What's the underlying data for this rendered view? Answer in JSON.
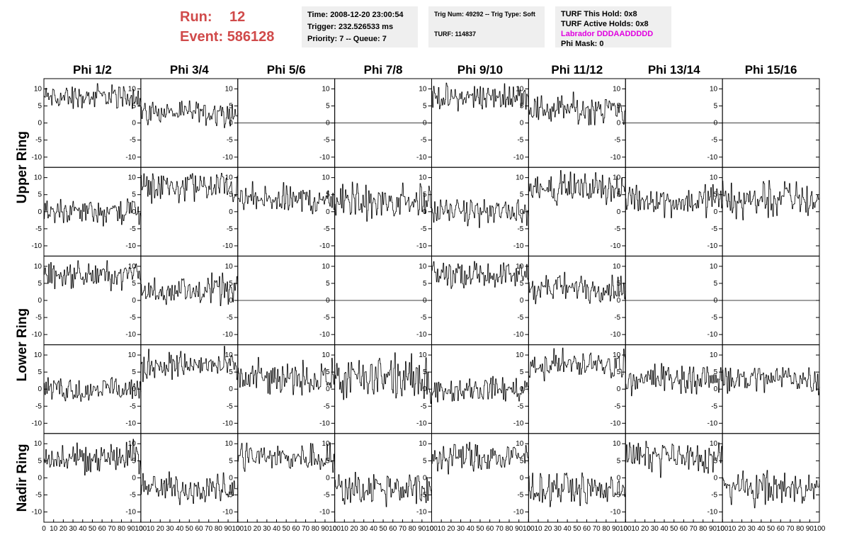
{
  "header": {
    "run_label": "Run:",
    "run_value": "12",
    "event_label": "Event:",
    "event_value": "586128",
    "time": "Time: 2008-12-20 23:00:54",
    "trigger": "Trigger: 232.526533 ms",
    "priority": "Priority: 7 -- Queue: 7",
    "trig_num": "Trig Num: 49292 -- Trig Type: Soft",
    "turf": "TURF: 114837",
    "turf_this_hold": "TURF This Hold: 0x8",
    "turf_active_holds": "TURF Active Holds: 0x8",
    "labrador": "Labrador DDDAADDDDD",
    "phi_mask": "Phi Mask: 0"
  },
  "colors": {
    "run": "#d04a4a",
    "labrador": "#e000e0",
    "panel_bg": "#efefef",
    "trace": "#000000"
  },
  "chart_data": {
    "type": "line",
    "columns": [
      "Phi 1/2",
      "Phi 3/4",
      "Phi 5/6",
      "Phi 7/8",
      "Phi 9/10",
      "Phi 11/12",
      "Phi 13/14",
      "Phi 15/16"
    ],
    "rings": [
      "Upper Ring",
      "Lower Ring",
      "Nadir Ring"
    ],
    "row_ring_index": [
      0,
      0,
      1,
      1,
      2
    ],
    "xlim": [
      0,
      100
    ],
    "ylim": [
      -13,
      13
    ],
    "x_ticks": [
      "0",
      "10",
      "20",
      "30",
      "40",
      "50",
      "60",
      "70",
      "80",
      "90",
      "100"
    ],
    "y_ticks": [
      "10",
      "5",
      "0",
      "-5",
      "-10"
    ],
    "samples_per_trace": 100,
    "panel_mean_levels": [
      [
        7.5,
        3,
        0,
        0,
        7.5,
        4,
        0,
        0
      ],
      [
        0,
        7,
        3.5,
        3,
        0,
        7,
        3.5,
        3.5
      ],
      [
        7.5,
        3,
        0,
        0,
        7.5,
        3.5,
        0,
        0
      ],
      [
        0,
        7,
        3,
        3,
        0,
        7,
        3,
        3
      ],
      [
        6,
        -3,
        6,
        -3,
        6,
        -3,
        6,
        -3
      ]
    ],
    "panel_noise_amplitude": [
      [
        2.5,
        2.5,
        0,
        0,
        2.5,
        3,
        0,
        0
      ],
      [
        2.5,
        3,
        3,
        4,
        2.5,
        3,
        3,
        4
      ],
      [
        2.5,
        3,
        0,
        0,
        2.5,
        3,
        0,
        0
      ],
      [
        2.5,
        3,
        3.5,
        4.5,
        2.5,
        3,
        3,
        3
      ],
      [
        3,
        3,
        3,
        3.5,
        3,
        3,
        3,
        3
      ]
    ]
  }
}
